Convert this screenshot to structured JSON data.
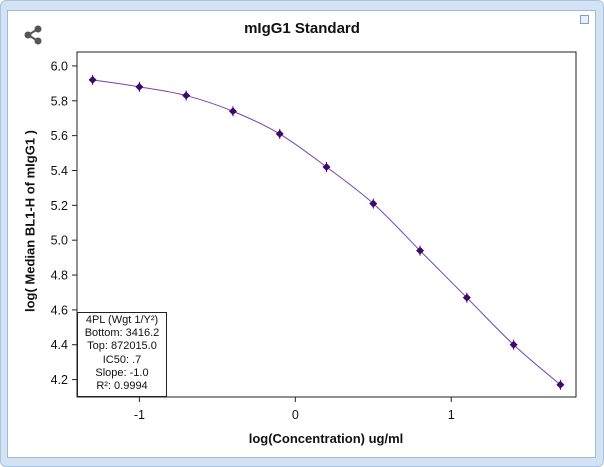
{
  "window": {
    "share_icon": "share-icon",
    "close_icon": "close-box-icon"
  },
  "chart_data": {
    "type": "scatter",
    "title": "mIgG1 Standard",
    "xlabel": "log(Concentration) ug/ml",
    "ylabel": "log( Median BL1-H of mIgG1 )",
    "xlim": [
      -1.4,
      1.8
    ],
    "ylim": [
      4.1,
      6.08
    ],
    "x_ticks": [
      -1,
      0,
      1
    ],
    "x_tick_labels": [
      "-1",
      "0",
      "1"
    ],
    "y_ticks": [
      4.2,
      4.4,
      4.6,
      4.8,
      5.0,
      5.2,
      5.4,
      5.6,
      5.8,
      6.0
    ],
    "y_tick_labels": [
      "4.2",
      "4.4",
      "4.6",
      "4.8",
      "5.0",
      "5.2",
      "5.4",
      "5.6",
      "5.8",
      "6.0"
    ],
    "grid": false,
    "marker_color": "#3d0a6b",
    "curve_color": "#7a3fb0",
    "points": [
      {
        "x": -1.3,
        "y": 5.92
      },
      {
        "x": -1.0,
        "y": 5.88
      },
      {
        "x": -0.7,
        "y": 5.83
      },
      {
        "x": -0.4,
        "y": 5.74
      },
      {
        "x": -0.1,
        "y": 5.61
      },
      {
        "x": 0.2,
        "y": 5.42
      },
      {
        "x": 0.5,
        "y": 5.21
      },
      {
        "x": 0.8,
        "y": 4.94
      },
      {
        "x": 1.1,
        "y": 4.67
      },
      {
        "x": 1.4,
        "y": 4.4
      },
      {
        "x": 1.7,
        "y": 4.17
      }
    ],
    "fit": {
      "model_label": "4PL (Wgt 1/Y²)",
      "bottom_label": "Bottom: 3416.2",
      "top_label": "Top: 872015.0",
      "ic50_label": "IC50: .7",
      "slope_label": "Slope: -1.0",
      "r2_label": "R²: 0.9994"
    }
  }
}
